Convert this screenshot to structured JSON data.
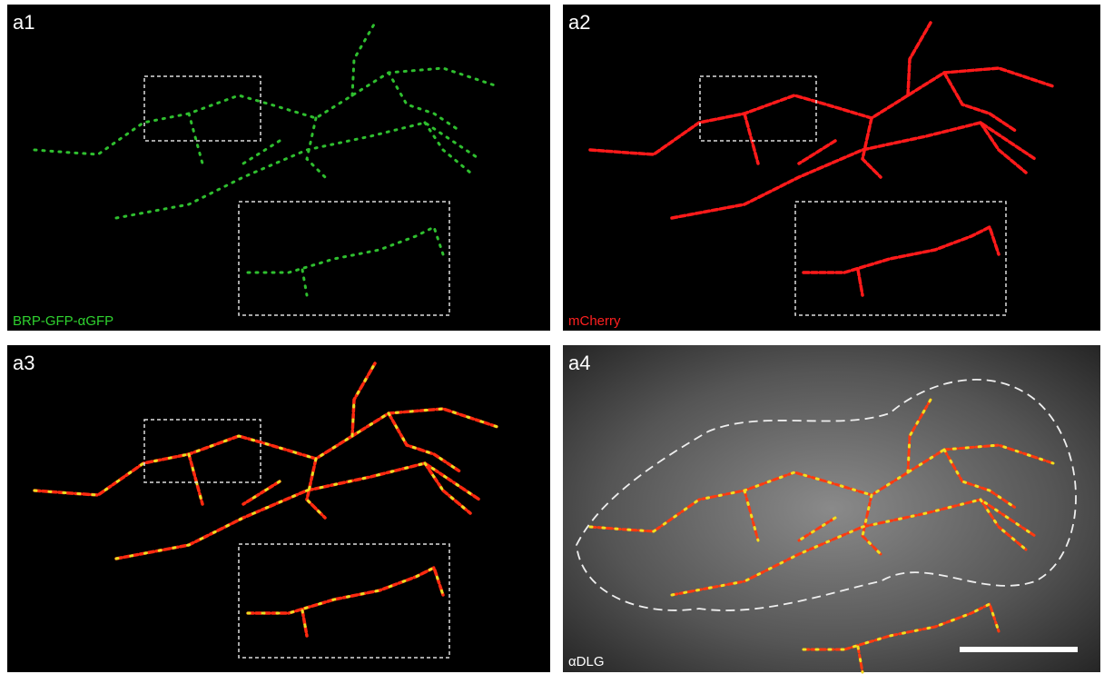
{
  "panels": [
    {
      "label": "a1",
      "channel": "BRP-GFP-αGFP"
    },
    {
      "label": "a2",
      "channel": "mCherry"
    },
    {
      "label": "a3"
    },
    {
      "label": "a4",
      "channel": "αDLG"
    }
  ]
}
